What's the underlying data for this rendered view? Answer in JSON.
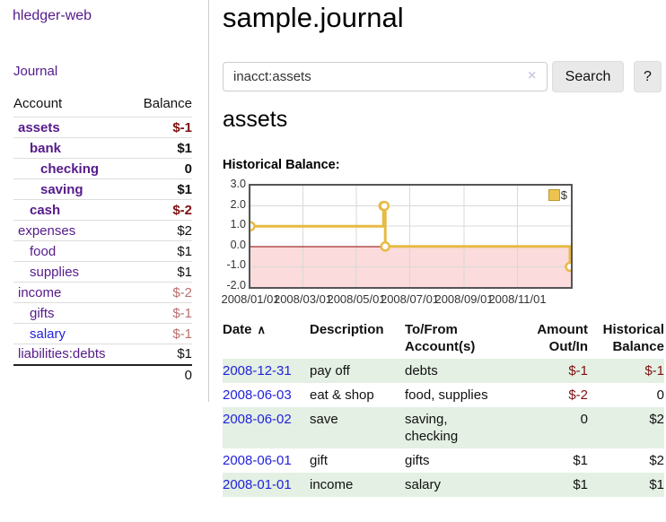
{
  "brand": "hledger-web",
  "sidebar": {
    "nav_journal": "Journal",
    "accounts": {
      "header_account": "Account",
      "header_balance": "Balance",
      "rows": [
        {
          "name": "assets",
          "balance": "$-1",
          "depth": 1,
          "bold": true,
          "name_color": "purple",
          "balance_color": "neg-strong"
        },
        {
          "name": "bank",
          "balance": "$1",
          "depth": 2,
          "bold": true,
          "name_color": "purple",
          "balance_color": "normal"
        },
        {
          "name": "checking",
          "balance": "0",
          "depth": 3,
          "bold": true,
          "name_color": "purple",
          "balance_color": "normal"
        },
        {
          "name": "saving",
          "balance": "$1",
          "depth": 3,
          "bold": true,
          "name_color": "purple",
          "balance_color": "normal"
        },
        {
          "name": "cash",
          "balance": "$-2",
          "depth": 2,
          "bold": true,
          "name_color": "purple",
          "balance_color": "neg-strong"
        },
        {
          "name": "expenses",
          "balance": "$2",
          "depth": 1,
          "bold": false,
          "name_color": "purple",
          "balance_color": "normal"
        },
        {
          "name": "food",
          "balance": "$1",
          "depth": 2,
          "bold": false,
          "name_color": "purple",
          "balance_color": "normal"
        },
        {
          "name": "supplies",
          "balance": "$1",
          "depth": 2,
          "bold": false,
          "name_color": "purple",
          "balance_color": "normal"
        },
        {
          "name": "income",
          "balance": "$-2",
          "depth": 1,
          "bold": false,
          "name_color": "purple",
          "balance_color": "neg-weak"
        },
        {
          "name": "gifts",
          "balance": "$-1",
          "depth": 2,
          "bold": false,
          "name_color": "purple",
          "balance_color": "neg-weak"
        },
        {
          "name": "salary",
          "balance": "$-1",
          "depth": 2,
          "bold": false,
          "name_color": "blue",
          "balance_color": "neg-weak"
        },
        {
          "name": "liabilities:debts",
          "balance": "$1",
          "depth": 1,
          "bold": false,
          "name_color": "purple",
          "balance_color": "normal"
        }
      ],
      "total": "0"
    }
  },
  "main": {
    "title": "sample.journal",
    "search": {
      "value": "inacct:assets",
      "button_label": "Search",
      "help_label": "?"
    },
    "account_heading": "assets",
    "section_label": "Historical Balance:"
  },
  "icons": {
    "clear": "×",
    "sort_ascending": "∧"
  },
  "chart_data": {
    "type": "line",
    "step": true,
    "title": "Historical Balance:",
    "series": [
      {
        "name": "$",
        "color": "#e7ba45",
        "points": [
          [
            "2008-01-01",
            1
          ],
          [
            "2008-06-01",
            2
          ],
          [
            "2008-06-02",
            2
          ],
          [
            "2008-06-03",
            0
          ],
          [
            "2008-12-31",
            -1
          ]
        ]
      }
    ],
    "x_range": [
      "2008-01-01",
      "2009-01-01"
    ],
    "x_ticks": [
      {
        "date": "2008-01-01",
        "label": "2008/01/01"
      },
      {
        "date": "2008-03-01",
        "label": "2008/03/01"
      },
      {
        "date": "2008-05-01",
        "label": "2008/05/01"
      },
      {
        "date": "2008-07-01",
        "label": "2008/07/01"
      },
      {
        "date": "2008-09-01",
        "label": "2008/09/01"
      },
      {
        "date": "2008-11-01",
        "label": "2008/11/01"
      }
    ],
    "y_ticks": [
      3,
      2,
      1,
      0,
      -1,
      -2
    ],
    "ylim": [
      -2,
      3
    ],
    "legend": {
      "label": "$",
      "position": "top-right"
    },
    "grid": true,
    "negative_region_fill": "#fbdbdb",
    "zero_line_color": "#8b0000",
    "grid_color": "#d9d9d9"
  },
  "register": {
    "headers": {
      "date": "Date",
      "description": "Description",
      "accounts": "To/From\nAccount(s)",
      "amount": "Amount\nOut/In",
      "balance": "Historical\nBalance"
    },
    "rows": [
      {
        "date": "2008-12-31",
        "description": "pay off",
        "accounts": "debts",
        "amount": "$-1",
        "balance": "$-1",
        "amount_color": "neg-strong",
        "balance_color": "neg-strong",
        "shaded": true
      },
      {
        "date": "2008-06-03",
        "description": "eat & shop",
        "accounts": "food, supplies",
        "amount": "$-2",
        "balance": "0",
        "amount_color": "neg-strong",
        "balance_color": "normal",
        "shaded": false
      },
      {
        "date": "2008-06-02",
        "description": "save",
        "accounts": "saving,\nchecking",
        "amount": "0",
        "balance": "$2",
        "amount_color": "normal",
        "balance_color": "normal",
        "shaded": true
      },
      {
        "date": "2008-06-01",
        "description": "gift",
        "accounts": "gifts",
        "amount": "$1",
        "balance": "$2",
        "amount_color": "normal",
        "balance_color": "normal",
        "shaded": false
      },
      {
        "date": "2008-01-01",
        "description": "income",
        "accounts": "salary",
        "amount": "$1",
        "balance": "$1",
        "amount_color": "normal",
        "balance_color": "normal",
        "shaded": true
      }
    ]
  },
  "colors": {
    "link_purple": "#551a8b",
    "link_blue": "#2222dd",
    "negative_strong": "#7e1010",
    "negative_weak": "#ba6f6f",
    "row_green": "#e3f0e3",
    "chart_gold": "#e7ba45",
    "chart_negative_pink": "#fbdbdb",
    "zero_line": "#8b0000",
    "button_bg": "#e9e9e9"
  }
}
